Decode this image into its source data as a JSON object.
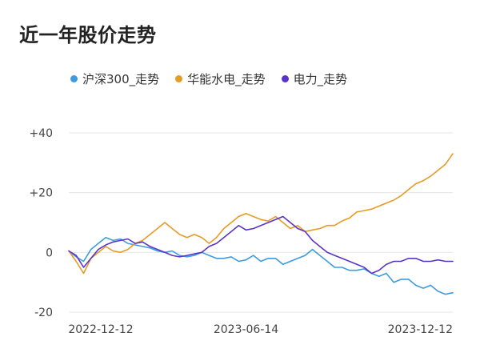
{
  "title": "近一年股价走势",
  "legend": [
    {
      "label": "沪深300_走势",
      "color": "#3e9be0"
    },
    {
      "label": "华能水电_走势",
      "color": "#e79b25"
    },
    {
      "label": "电力_走势",
      "color": "#5b34c7"
    }
  ],
  "chart_data": {
    "type": "line",
    "title": "近一年股价走势",
    "xlabel": "",
    "ylabel": "",
    "ylim": [
      -20,
      40
    ],
    "yticks": [
      {
        "value": 40,
        "label": "+40"
      },
      {
        "value": 20,
        "label": "+20"
      },
      {
        "value": 0,
        "label": "0"
      },
      {
        "value": -20,
        "label": "-20"
      }
    ],
    "xticks": [
      {
        "index": 0,
        "label": "2022-12-12"
      },
      {
        "index": 24,
        "label": "2023-06-14"
      },
      {
        "index": 48,
        "label": "2023-12-12"
      }
    ],
    "grid": true,
    "legend_position": "top",
    "series": [
      {
        "name": "沪深300_走势",
        "color": "#3e9be0",
        "values": [
          0.5,
          -1.5,
          -3,
          1,
          3,
          5,
          4,
          4.5,
          3,
          2.5,
          2,
          1.5,
          0.5,
          0,
          0.5,
          -1,
          -1.5,
          -1,
          0,
          -1,
          -2,
          -2,
          -1.5,
          -3,
          -2.5,
          -1,
          -3,
          -2,
          -2,
          -4,
          -3,
          -2,
          -1,
          1,
          -1,
          -3,
          -5,
          -5,
          -6,
          -6,
          -5.5,
          -7,
          -8,
          -7,
          -10,
          -9,
          -9,
          -11,
          -12,
          -11,
          -13,
          -14,
          -13.5
        ]
      },
      {
        "name": "华能水电_走势",
        "color": "#e79b25",
        "values": [
          0.5,
          -3,
          -7,
          -2,
          0,
          2,
          0.5,
          0,
          1,
          3,
          4,
          6,
          8,
          10,
          8,
          6,
          5,
          6,
          5,
          3,
          5,
          8,
          10,
          12,
          13,
          12,
          11,
          10.5,
          12,
          10,
          8,
          9,
          7,
          7.5,
          8,
          9,
          9,
          10.5,
          11.5,
          13.5,
          14,
          14.5,
          15.5,
          16.5,
          17.5,
          19,
          21,
          23,
          24,
          25.5,
          27.5,
          29.5,
          33
        ]
      },
      {
        "name": "电力_走势",
        "color": "#5b34c7",
        "values": [
          0.5,
          -1,
          -5,
          -2,
          1,
          2.5,
          3.5,
          4,
          4.5,
          3,
          3.5,
          2,
          1,
          0,
          -1,
          -1.5,
          -1,
          -0.5,
          0,
          2,
          3,
          5,
          7,
          9,
          7.5,
          8,
          9,
          10,
          11,
          12,
          10,
          8,
          7,
          4,
          2,
          0,
          -1,
          -2,
          -3,
          -4,
          -5,
          -7,
          -6,
          -4,
          -3,
          -3,
          -2,
          -2,
          -3,
          -3,
          -2.5,
          -3,
          -3
        ]
      }
    ]
  }
}
